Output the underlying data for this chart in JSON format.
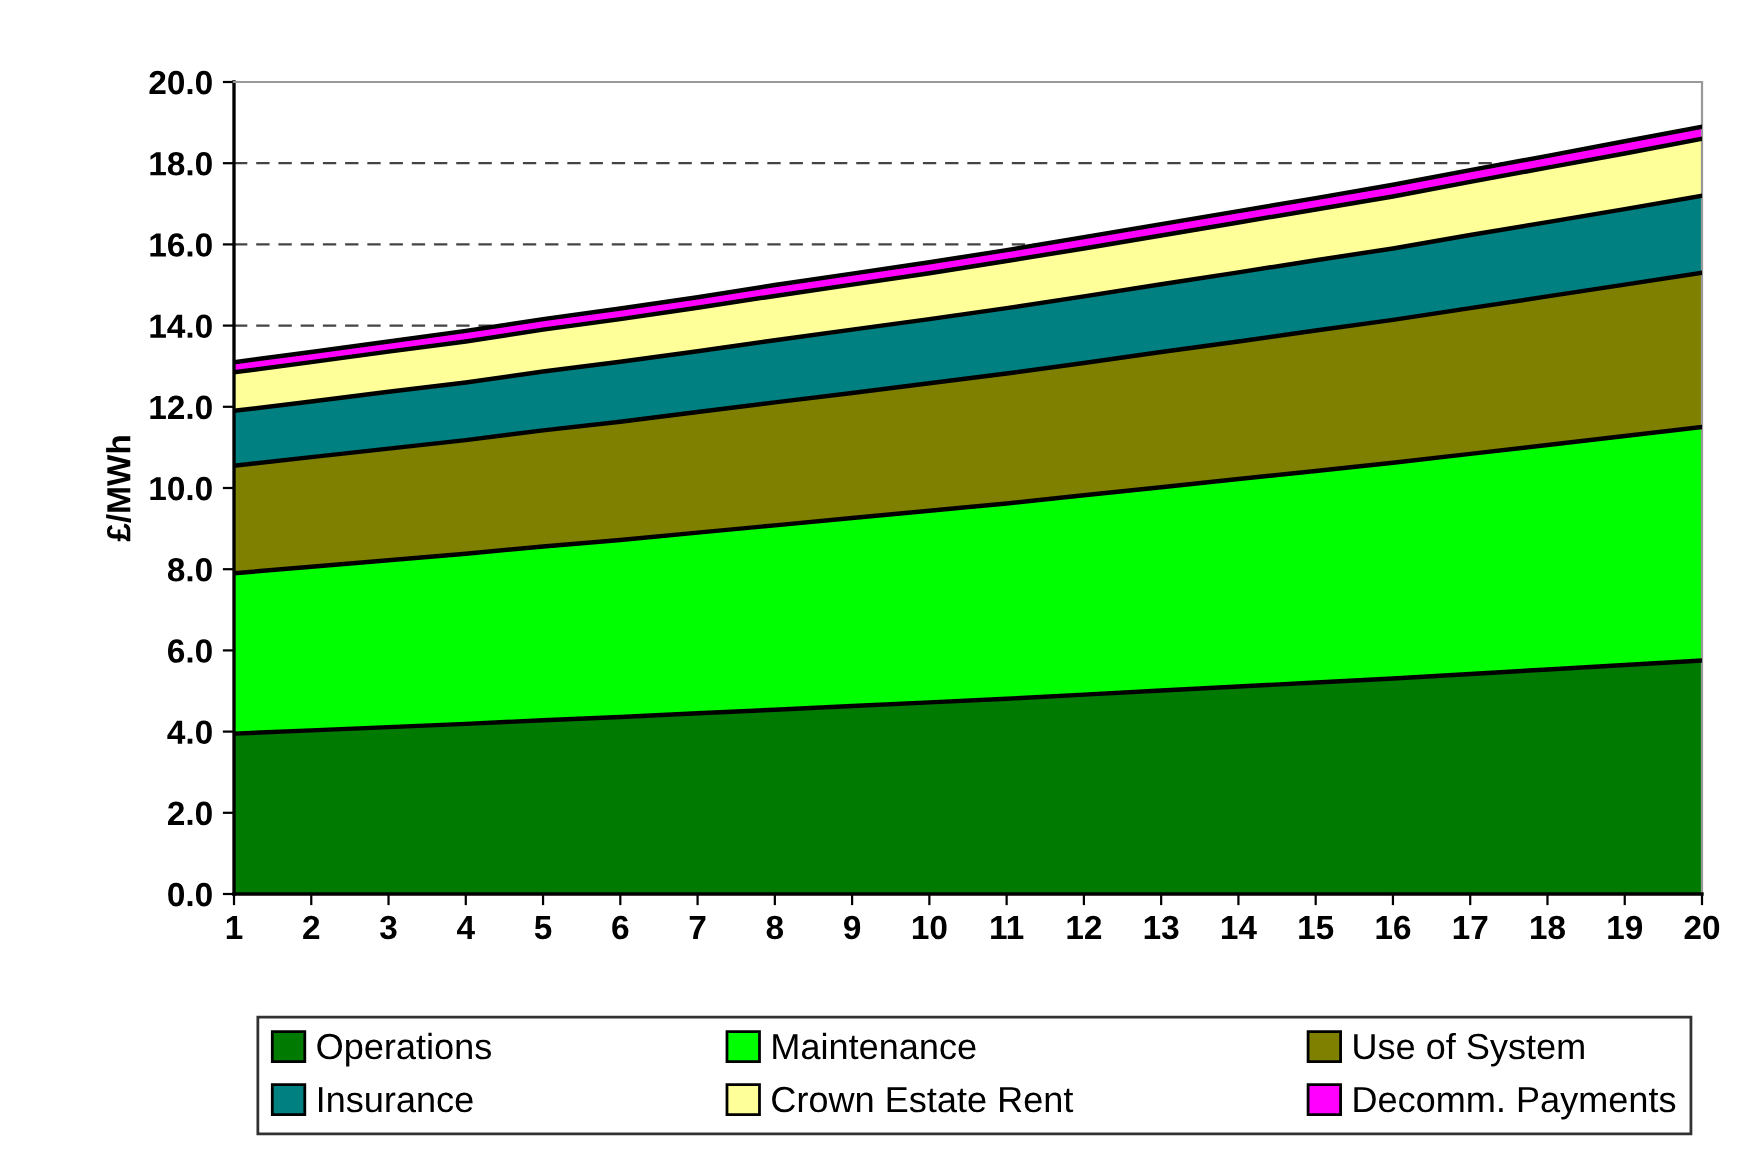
{
  "chart_data": {
    "type": "area",
    "stacked": true,
    "ylabel": "£/MWh",
    "categories": [
      "1",
      "2",
      "3",
      "4",
      "5",
      "6",
      "7",
      "8",
      "9",
      "10",
      "11",
      "12",
      "13",
      "14",
      "15",
      "16",
      "17",
      "18",
      "19",
      "20"
    ],
    "series": [
      {
        "name": "Operations",
        "color": "#007a00",
        "values": [
          3.95,
          4.03,
          4.11,
          4.19,
          4.28,
          4.36,
          4.45,
          4.54,
          4.63,
          4.72,
          4.81,
          4.91,
          5.01,
          5.11,
          5.21,
          5.31,
          5.42,
          5.53,
          5.64,
          5.75
        ]
      },
      {
        "name": "Maintenance",
        "color": "#00ff00",
        "values": [
          3.95,
          4.03,
          4.11,
          4.19,
          4.28,
          4.36,
          4.45,
          4.54,
          4.63,
          4.72,
          4.81,
          4.91,
          5.01,
          5.11,
          5.21,
          5.31,
          5.42,
          5.53,
          5.64,
          5.75
        ]
      },
      {
        "name": "Use of System",
        "color": "#808000",
        "values": [
          2.65,
          2.7,
          2.75,
          2.8,
          2.86,
          2.91,
          2.97,
          3.03,
          3.08,
          3.14,
          3.2,
          3.26,
          3.33,
          3.39,
          3.46,
          3.52,
          3.59,
          3.66,
          3.73,
          3.8
        ]
      },
      {
        "name": "Insurance",
        "color": "#008080",
        "values": [
          1.35,
          1.37,
          1.4,
          1.42,
          1.45,
          1.48,
          1.5,
          1.53,
          1.56,
          1.58,
          1.61,
          1.64,
          1.67,
          1.7,
          1.73,
          1.76,
          1.8,
          1.83,
          1.86,
          1.9
        ]
      },
      {
        "name": "Crown Estate Rent",
        "color": "#ffff99",
        "values": [
          0.95,
          0.97,
          0.99,
          1.01,
          1.03,
          1.05,
          1.07,
          1.09,
          1.11,
          1.13,
          1.16,
          1.18,
          1.2,
          1.23,
          1.25,
          1.28,
          1.31,
          1.34,
          1.37,
          1.4
        ]
      },
      {
        "name": "Decomm. Payments",
        "color": "#ff00ff",
        "values": [
          0.25,
          0.25,
          0.25,
          0.26,
          0.26,
          0.26,
          0.26,
          0.27,
          0.27,
          0.27,
          0.27,
          0.28,
          0.28,
          0.28,
          0.28,
          0.29,
          0.29,
          0.29,
          0.3,
          0.3
        ]
      }
    ],
    "ylim": [
      0,
      20
    ],
    "yticks": [
      {
        "value": 0,
        "label": "0.0"
      },
      {
        "value": 2,
        "label": "2.0"
      },
      {
        "value": 4,
        "label": "4.0"
      },
      {
        "value": 6,
        "label": "6.0"
      },
      {
        "value": 8,
        "label": "8.0"
      },
      {
        "value": 10,
        "label": "10.0"
      },
      {
        "value": 12,
        "label": "12.0"
      },
      {
        "value": 14,
        "label": "14.0"
      },
      {
        "value": 16,
        "label": "16.0"
      },
      {
        "value": 18,
        "label": "18.0"
      },
      {
        "value": 20,
        "label": "20.0"
      }
    ],
    "grid": "y",
    "legend": "bottom"
  }
}
